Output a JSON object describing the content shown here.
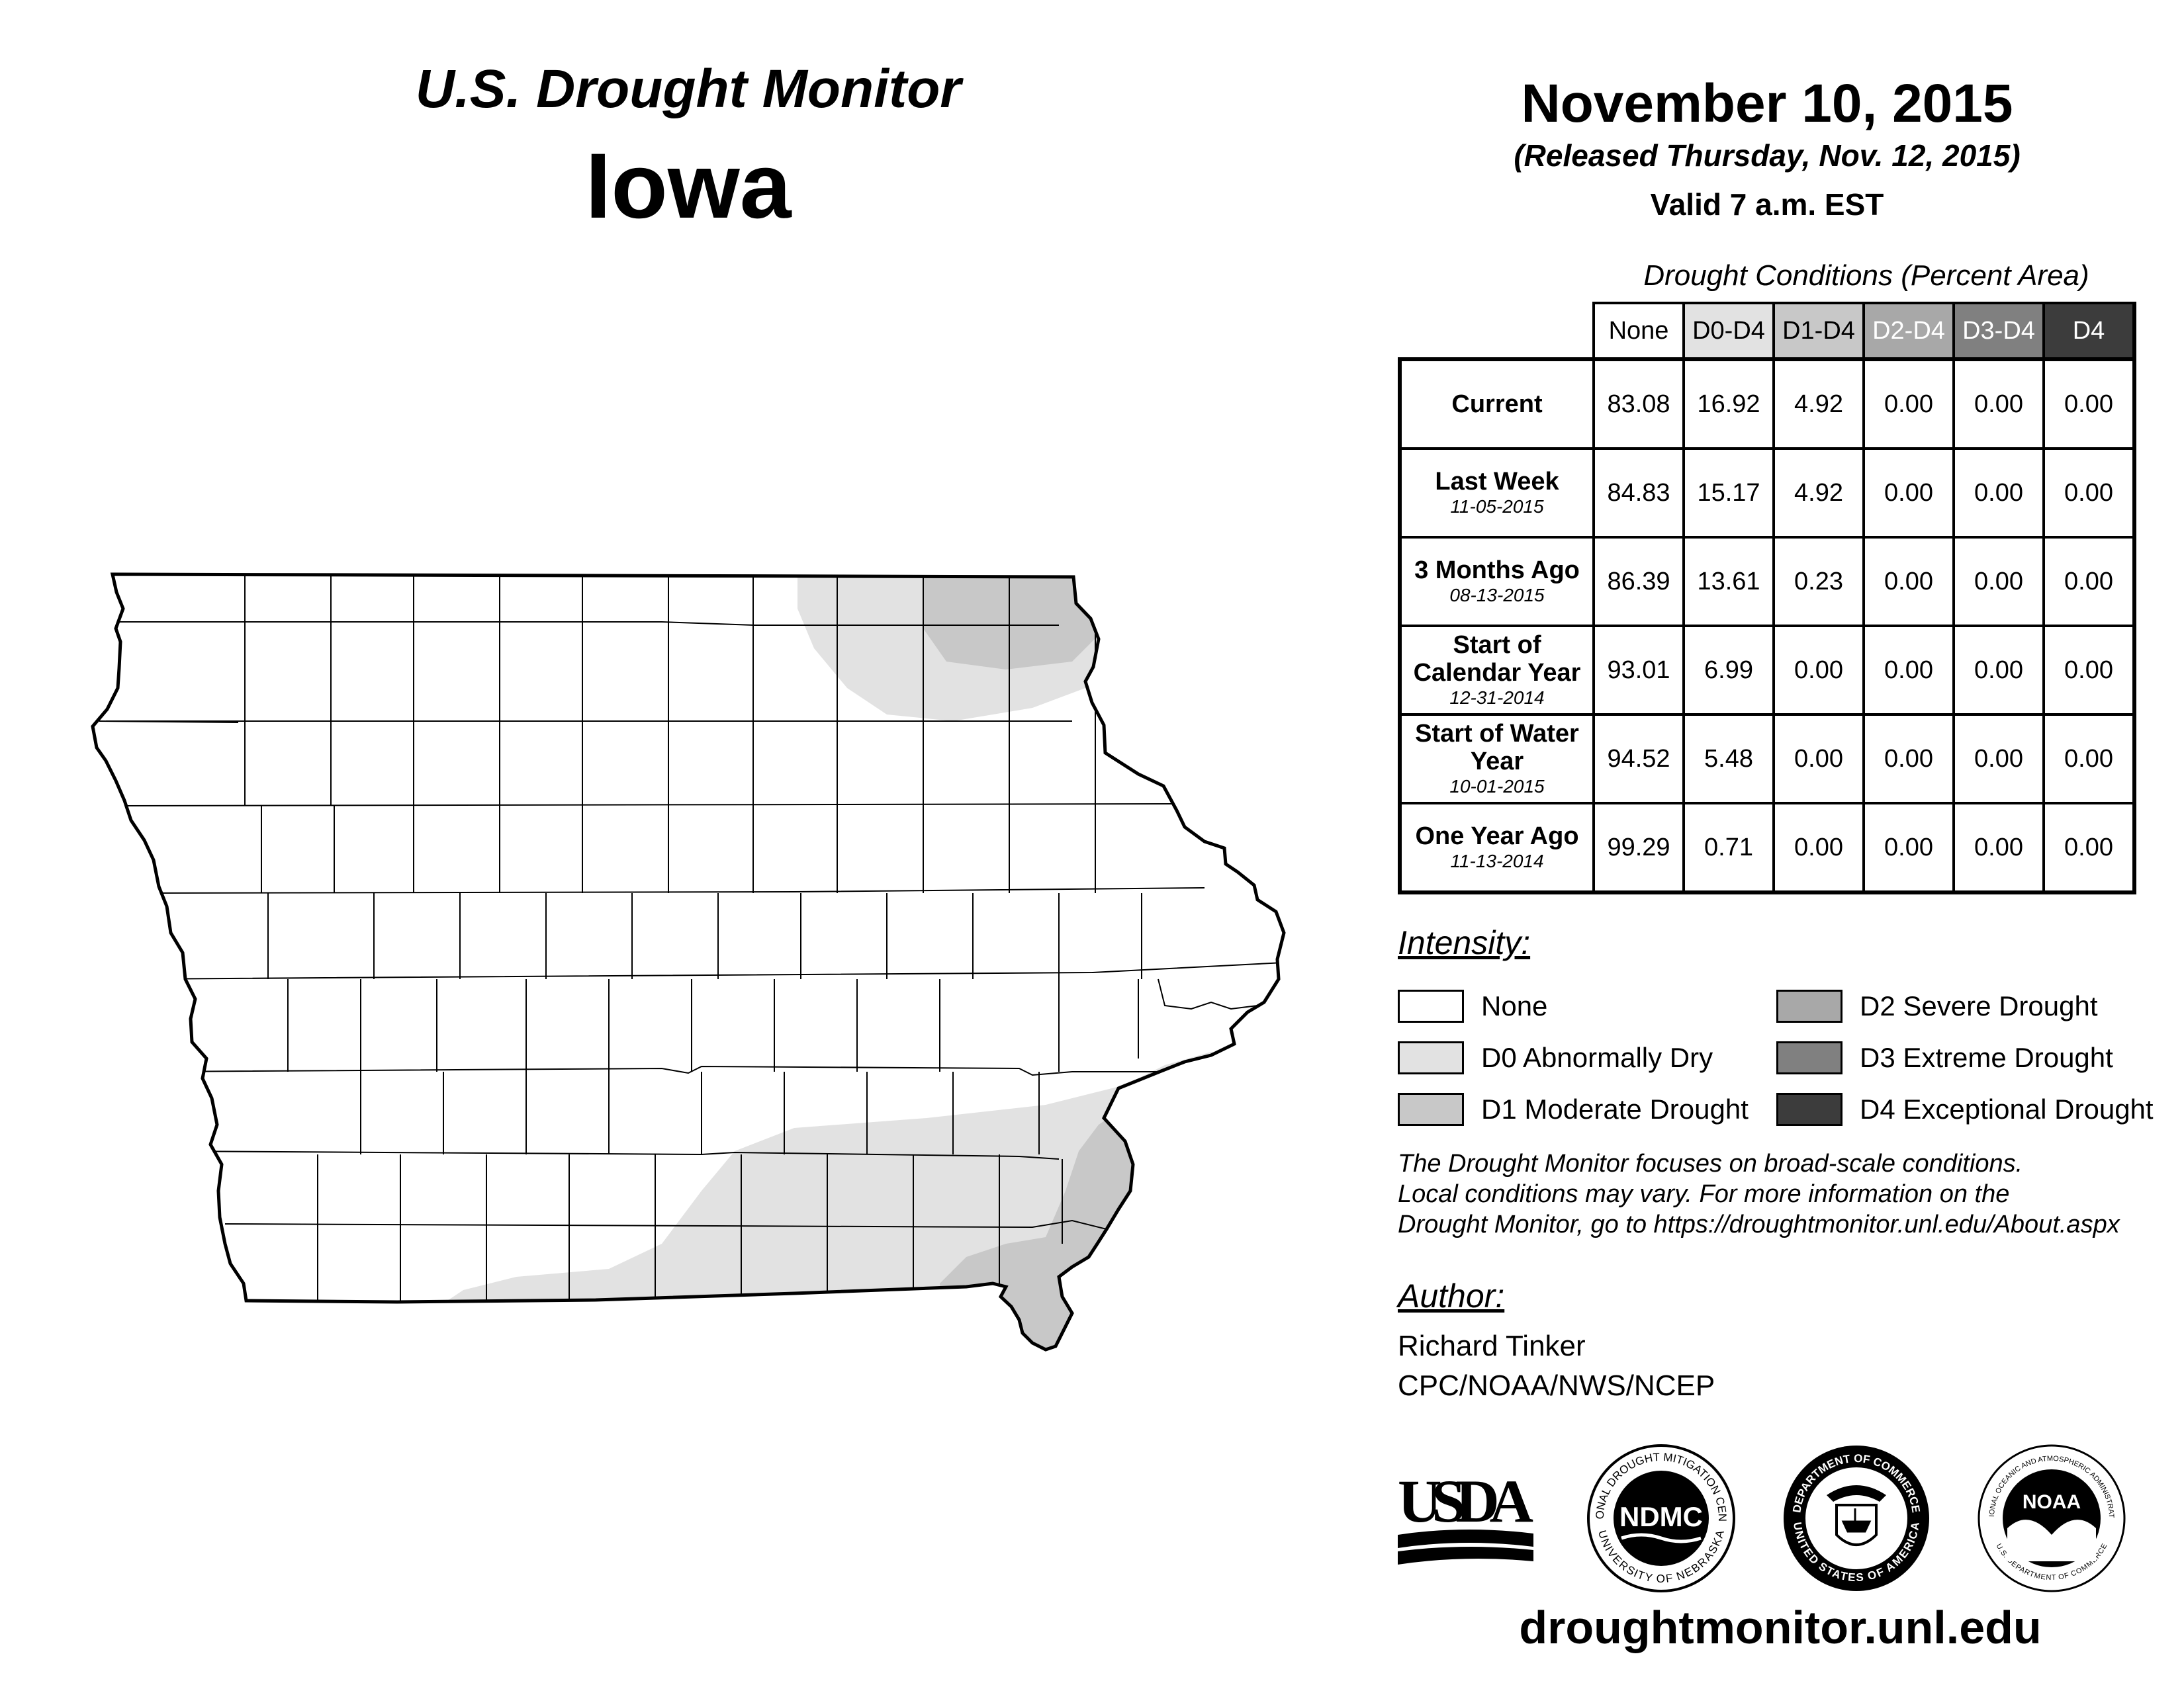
{
  "header": {
    "title": "U.S. Drought Monitor",
    "state": "Iowa",
    "date": "November 10, 2015",
    "released": "(Released Thursday, Nov. 12, 2015)",
    "valid": "Valid 7 a.m. EST"
  },
  "table": {
    "caption": "Drought Conditions (Percent Area)",
    "columns": [
      {
        "label": "None",
        "bg": "#ffffff",
        "fg": "#000000"
      },
      {
        "label": "D0-D4",
        "bg": "#e2e2e2",
        "fg": "#000000"
      },
      {
        "label": "D1-D4",
        "bg": "#c8c8c8",
        "fg": "#000000"
      },
      {
        "label": "D2-D4",
        "bg": "#a8a8a8",
        "fg": "#ffffff"
      },
      {
        "label": "D3-D4",
        "bg": "#808080",
        "fg": "#ffffff"
      },
      {
        "label": "D4",
        "bg": "#3c3c3c",
        "fg": "#ffffff"
      }
    ],
    "rows": [
      {
        "label": "Current",
        "sub": "",
        "values": [
          "83.08",
          "16.92",
          "4.92",
          "0.00",
          "0.00",
          "0.00"
        ]
      },
      {
        "label": "Last Week",
        "sub": "11-05-2015",
        "values": [
          "84.83",
          "15.17",
          "4.92",
          "0.00",
          "0.00",
          "0.00"
        ]
      },
      {
        "label": "3 Months Ago",
        "sub": "08-13-2015",
        "values": [
          "86.39",
          "13.61",
          "0.23",
          "0.00",
          "0.00",
          "0.00"
        ]
      },
      {
        "label": "Start of Calendar Year",
        "sub": "12-31-2014",
        "values": [
          "93.01",
          "6.99",
          "0.00",
          "0.00",
          "0.00",
          "0.00"
        ]
      },
      {
        "label": "Start of Water Year",
        "sub": "10-01-2015",
        "values": [
          "94.52",
          "5.48",
          "0.00",
          "0.00",
          "0.00",
          "0.00"
        ]
      },
      {
        "label": "One Year Ago",
        "sub": "11-13-2014",
        "values": [
          "99.29",
          "0.71",
          "0.00",
          "0.00",
          "0.00",
          "0.00"
        ]
      }
    ]
  },
  "legend": {
    "heading": "Intensity:",
    "items": [
      {
        "label": "None",
        "color": "#ffffff"
      },
      {
        "label": "D0 Abnormally Dry",
        "color": "#e2e2e2"
      },
      {
        "label": "D1 Moderate Drought",
        "color": "#c8c8c8"
      },
      {
        "label": "D2 Severe Drought",
        "color": "#a8a8a8"
      },
      {
        "label": "D3 Extreme Drought",
        "color": "#808080"
      },
      {
        "label": "D4 Exceptional Drought",
        "color": "#3c3c3c"
      }
    ]
  },
  "note": {
    "line1": "The Drought Monitor focuses on broad-scale conditions.",
    "line2": "Local conditions may vary. For more information on the",
    "line3": "Drought Monitor, go to https://droughtmonitor.unl.edu/About.aspx"
  },
  "author": {
    "heading": "Author:",
    "name": "Richard Tinker",
    "org": "CPC/NOAA/NWS/NCEP"
  },
  "logos": {
    "usda": "USDA",
    "ndmc": "NDMC",
    "ndmc_top": "NATIONAL DROUGHT MITIGATION CENTER",
    "ndmc_bottom": "UNIVERSITY OF NEBRASKA",
    "doc_top": "DEPARTMENT OF COMMERCE",
    "doc_bottom": "UNITED STATES OF AMERICA",
    "noaa": "NOAA",
    "noaa_top": "NATIONAL OCEANIC AND ATMOSPHERIC ADMINISTRATION",
    "noaa_bottom": "U.S. DEPARTMENT OF COMMERCE"
  },
  "footer": {
    "site": "droughtmonitor.unl.edu"
  },
  "map": {
    "d0_color": "#e2e2e2",
    "d1_color": "#c8c8c8"
  }
}
